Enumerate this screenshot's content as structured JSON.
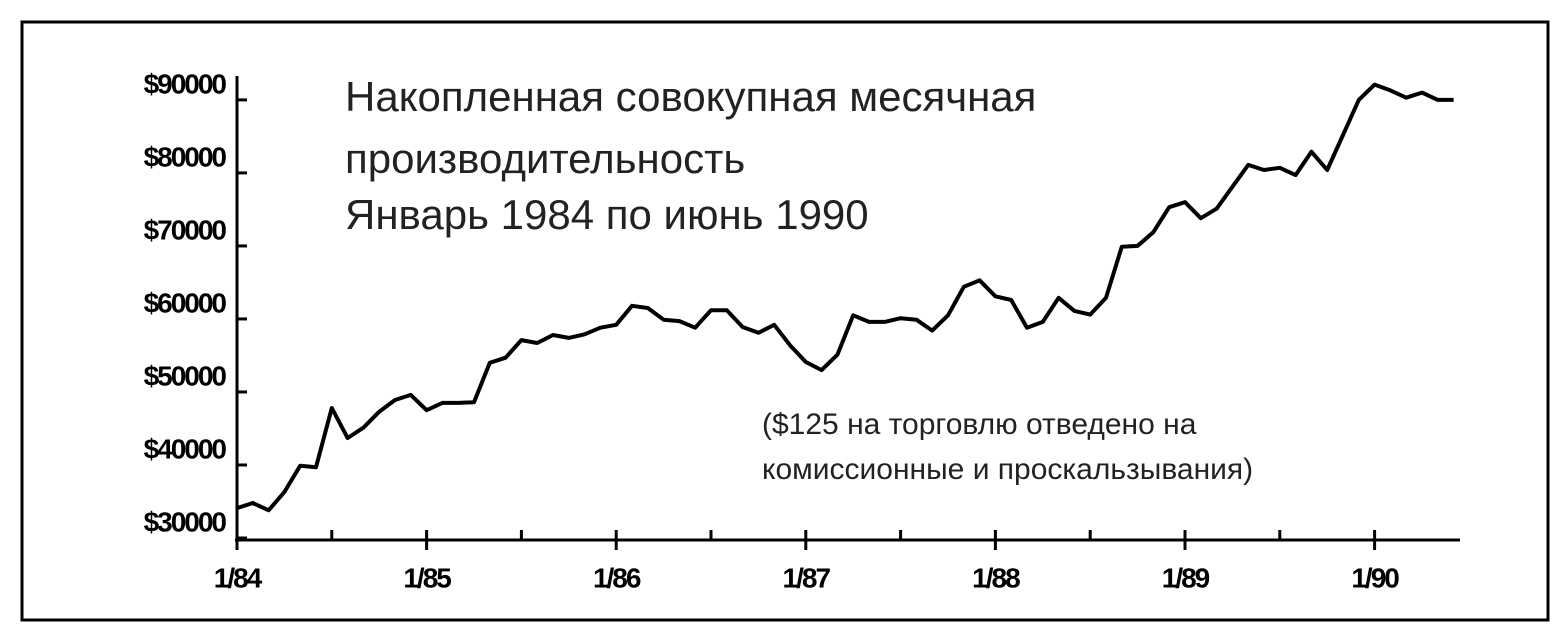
{
  "chart_data": {
    "type": "line",
    "title": [
      "Накопленная совокупная месячная",
      "производительность",
      "Январь 1984 по июнь 1990"
    ],
    "annotation": [
      "($125 на торговлю отведено на",
      "комиссионные и проскальзывания)"
    ],
    "categories": [
      "1/84",
      null,
      null,
      null,
      null,
      null,
      null,
      null,
      null,
      null,
      null,
      null,
      "1/85",
      null,
      null,
      null,
      null,
      null,
      null,
      null,
      null,
      null,
      null,
      null,
      "1/86",
      null,
      null,
      null,
      null,
      null,
      null,
      null,
      null,
      null,
      null,
      null,
      "1/87",
      null,
      null,
      null,
      null,
      null,
      null,
      null,
      null,
      null,
      null,
      null,
      "1/88",
      null,
      null,
      null,
      null,
      null,
      null,
      null,
      null,
      null,
      null,
      null,
      "1/89",
      null,
      null,
      null,
      null,
      null,
      null,
      null,
      null,
      null,
      null,
      null,
      "1/90",
      null,
      null,
      null,
      null,
      null
    ],
    "values": [
      34100,
      34800,
      33800,
      36300,
      39900,
      39700,
      47800,
      43700,
      45100,
      47300,
      48900,
      49600,
      47500,
      48500,
      48500,
      48600,
      54000,
      54700,
      57100,
      56700,
      57800,
      57400,
      57900,
      58800,
      59200,
      61800,
      61500,
      59900,
      59700,
      58800,
      61200,
      61200,
      58900,
      58100,
      59200,
      56400,
      54100,
      53000,
      55100,
      60500,
      59600,
      59600,
      60100,
      59900,
      58400,
      60500,
      64400,
      65300,
      63100,
      62600,
      58800,
      59600,
      62900,
      61100,
      60600,
      62900,
      69900,
      70000,
      71900,
      75300,
      76000,
      73800,
      75100,
      78100,
      81100,
      80400,
      80700,
      79700,
      82900,
      80400,
      85200,
      90000,
      92100,
      91300,
      90300,
      91000,
      90000,
      90000
    ],
    "color": "#000000",
    "ylim": [
      30000,
      93000
    ],
    "yticks": [
      {
        "value": 30000,
        "label": "$30000"
      },
      {
        "value": 40000,
        "label": "$40000"
      },
      {
        "value": 50000,
        "label": "$50000"
      },
      {
        "value": 60000,
        "label": "$60000"
      },
      {
        "value": 70000,
        "label": "$70000"
      },
      {
        "value": 80000,
        "label": "$80000"
      },
      {
        "value": 90000,
        "label": "$90000"
      }
    ],
    "grid": false
  }
}
